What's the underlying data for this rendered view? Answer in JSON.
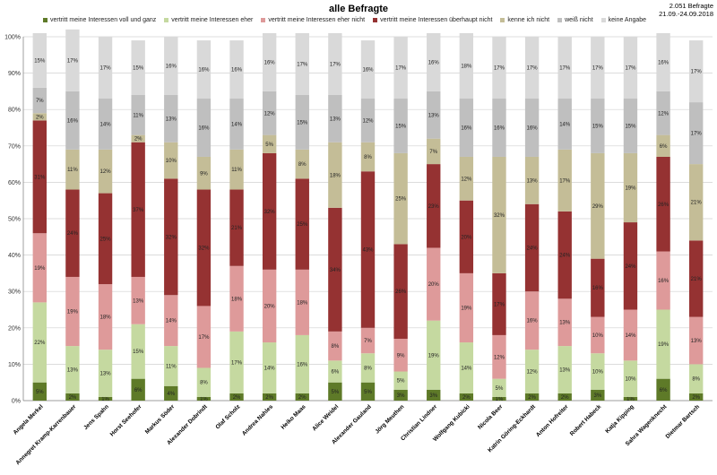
{
  "chart_data": {
    "type": "bar",
    "stacked": true,
    "title": "alle Befragte",
    "meta_line1": "2.051 Befragte",
    "meta_line2": "21.09.-24.09.2018",
    "ylim": [
      0,
      100
    ],
    "y_ticks": [
      "0%",
      "10%",
      "20%",
      "30%",
      "40%",
      "50%",
      "60%",
      "70%",
      "80%",
      "90%",
      "100%"
    ],
    "grid": true,
    "legend_position": "top",
    "categories": [
      "Angela Merkel",
      "Annegret Kramp-Karrenbauer",
      "Jens Spahn",
      "Horst Seehofer",
      "Markus Söder",
      "Alexander Dobrindt",
      "Olaf Scholz",
      "Andrea Nahles",
      "Heiko Maas",
      "Alice Weidel",
      "Alexander Gauland",
      "Jörg Meuthen",
      "Christian Lindner",
      "Wolfgang Kubicki",
      "Nicola Beer",
      "Katrin Göring-Eckhardt",
      "Anton Hofreiter",
      "Robert Habeck",
      "Katja Kipping",
      "Sahra Wagenknecht",
      "Dietmar Bartsch"
    ],
    "series": [
      {
        "name": "vertritt meine Interessen voll und ganz",
        "color": "#5e7a28",
        "values": [
          5,
          2,
          1,
          6,
          4,
          1,
          2,
          2,
          2,
          5,
          5,
          3,
          3,
          2,
          1,
          2,
          2,
          3,
          1,
          6,
          2
        ]
      },
      {
        "name": "vertritt meine Interessen eher",
        "color": "#c5d9a0",
        "values": [
          22,
          13,
          13,
          15,
          11,
          8,
          17,
          14,
          16,
          6,
          8,
          5,
          19,
          14,
          5,
          12,
          13,
          10,
          10,
          19,
          8
        ]
      },
      {
        "name": "vertritt meine Interessen eher nicht",
        "color": "#de9a9a",
        "values": [
          19,
          19,
          18,
          13,
          14,
          17,
          18,
          20,
          18,
          8,
          7,
          9,
          20,
          19,
          12,
          16,
          13,
          10,
          14,
          16,
          13
        ]
      },
      {
        "name": "vertritt meine Interessen überhaupt nicht",
        "color": "#953232",
        "values": [
          31,
          24,
          25,
          37,
          32,
          32,
          21,
          32,
          25,
          34,
          43,
          26,
          23,
          20,
          17,
          24,
          24,
          16,
          24,
          26,
          21
        ]
      },
      {
        "name": "kenne ich nicht",
        "color": "#c4bd97",
        "values": [
          2,
          11,
          12,
          2,
          10,
          9,
          11,
          5,
          8,
          18,
          8,
          25,
          7,
          12,
          32,
          13,
          17,
          29,
          19,
          6,
          21
        ]
      },
      {
        "name": "weiß nicht",
        "color": "#bfbfbf",
        "values": [
          7,
          16,
          14,
          11,
          13,
          16,
          14,
          12,
          15,
          13,
          12,
          15,
          13,
          16,
          16,
          16,
          14,
          15,
          15,
          12,
          17
        ]
      },
      {
        "name": "keine Angabe",
        "color": "#d9d9d9",
        "values": [
          15,
          17,
          17,
          15,
          16,
          16,
          16,
          16,
          17,
          17,
          16,
          17,
          16,
          18,
          17,
          17,
          17,
          17,
          17,
          16,
          17
        ]
      }
    ]
  }
}
